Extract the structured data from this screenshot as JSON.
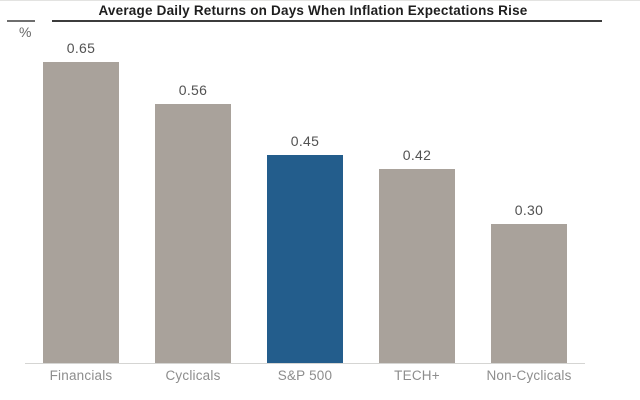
{
  "header": {
    "title": "Average Daily Returns on Days When Inflation Expectations Rise",
    "unit_label": "%"
  },
  "chart_data": {
    "type": "bar",
    "title": "Average Daily Returns on Days When Inflation Expectations Rise",
    "xlabel": "",
    "ylabel": "%",
    "categories": [
      "Financials",
      "Cyclicals",
      "S&P 500",
      "TECH+",
      "Non-Cyclicals"
    ],
    "values": [
      0.65,
      0.56,
      0.45,
      0.42,
      0.3
    ],
    "value_labels": [
      "0.65",
      "0.56",
      "0.45",
      "0.42",
      "0.30"
    ],
    "highlight_index": 2,
    "colors": {
      "bar_default": "#a9a29b",
      "bar_highlight": "#235d8c",
      "value_label": "#525252",
      "category_label": "#8d8d8d",
      "baseline": "#d5d5d3",
      "title_rule": "#3c3c3c"
    },
    "ylim": [
      0,
      0.7
    ],
    "grid": false,
    "legend": null,
    "data_labels_shown": true
  }
}
